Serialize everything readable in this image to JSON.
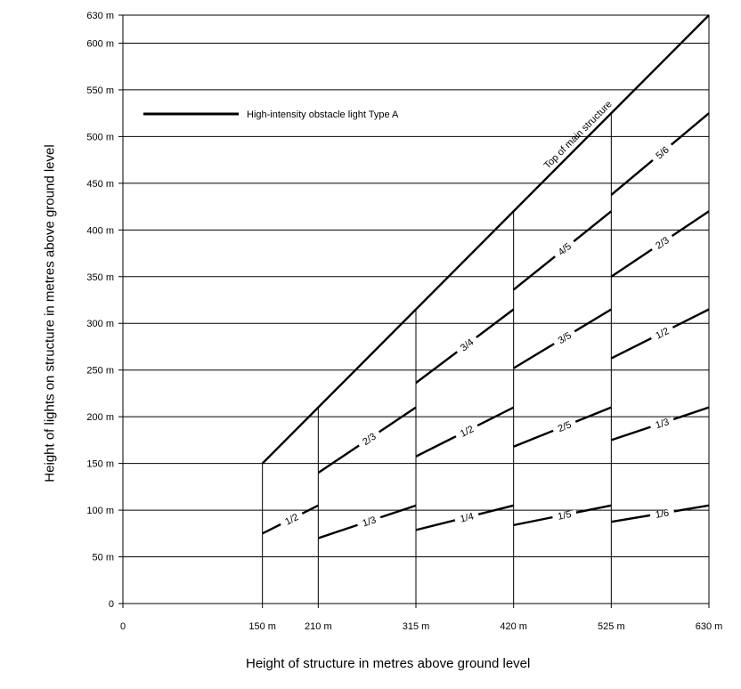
{
  "chart_data": {
    "type": "line",
    "xlabel": "Height of structure in metres above ground level",
    "ylabel": "Height of lights on structure in metres above ground level",
    "xlim": [
      0,
      630
    ],
    "ylim": [
      0,
      630
    ],
    "x_ticks": [
      {
        "value": 0,
        "label": "0"
      },
      {
        "value": 150,
        "label": "150 m"
      },
      {
        "value": 210,
        "label": "210 m"
      },
      {
        "value": 315,
        "label": "315 m"
      },
      {
        "value": 420,
        "label": "420 m"
      },
      {
        "value": 525,
        "label": "525 m"
      },
      {
        "value": 630,
        "label": "630 m"
      }
    ],
    "y_ticks": [
      {
        "value": 0,
        "label": "0"
      },
      {
        "value": 50,
        "label": "50 m"
      },
      {
        "value": 100,
        "label": "100 m"
      },
      {
        "value": 150,
        "label": "150 m"
      },
      {
        "value": 200,
        "label": "200 m"
      },
      {
        "value": 250,
        "label": "250 m"
      },
      {
        "value": 300,
        "label": "300 m"
      },
      {
        "value": 350,
        "label": "350 m"
      },
      {
        "value": 400,
        "label": "400 m"
      },
      {
        "value": 450,
        "label": "450 m"
      },
      {
        "value": 500,
        "label": "500 m"
      },
      {
        "value": 550,
        "label": "550 m"
      },
      {
        "value": 600,
        "label": "600 m"
      },
      {
        "value": 630,
        "label": "630 m"
      }
    ],
    "gridlines_y": [
      50,
      100,
      150,
      200,
      250,
      300,
      350,
      400,
      450,
      500,
      550,
      600
    ],
    "vertical_lines_x": [
      150,
      210,
      315,
      420,
      525
    ],
    "legend": {
      "label": "High-intensity obstacle light Type A",
      "placement": "top-left"
    },
    "series": [
      {
        "name": "Top of main structure",
        "x": [
          150,
          630
        ],
        "y": [
          150,
          630
        ]
      },
      {
        "name": "1/2",
        "x": [
          150,
          210
        ],
        "y": [
          75,
          105
        ]
      },
      {
        "name": "2/3",
        "x": [
          210,
          315
        ],
        "y": [
          140,
          210
        ]
      },
      {
        "name": "1/3",
        "x": [
          210,
          315
        ],
        "y": [
          70,
          105
        ]
      },
      {
        "name": "3/4",
        "x": [
          315,
          420
        ],
        "y": [
          236.25,
          315
        ]
      },
      {
        "name": "1/2",
        "x": [
          315,
          420
        ],
        "y": [
          157.5,
          210
        ]
      },
      {
        "name": "1/4",
        "x": [
          315,
          420
        ],
        "y": [
          78.75,
          105
        ]
      },
      {
        "name": "4/5",
        "x": [
          420,
          525
        ],
        "y": [
          336,
          420
        ]
      },
      {
        "name": "3/5",
        "x": [
          420,
          525
        ],
        "y": [
          252,
          315
        ]
      },
      {
        "name": "2/5",
        "x": [
          420,
          525
        ],
        "y": [
          168,
          210
        ]
      },
      {
        "name": "1/5",
        "x": [
          420,
          525
        ],
        "y": [
          84,
          105
        ]
      },
      {
        "name": "5/6",
        "x": [
          525,
          630
        ],
        "y": [
          437.5,
          525
        ]
      },
      {
        "name": "2/3",
        "x": [
          525,
          630
        ],
        "y": [
          350,
          420
        ]
      },
      {
        "name": "1/2",
        "x": [
          525,
          630
        ],
        "y": [
          262.5,
          315
        ]
      },
      {
        "name": "1/3",
        "x": [
          525,
          630
        ],
        "y": [
          175,
          210
        ]
      },
      {
        "name": "1/6",
        "x": [
          525,
          630
        ],
        "y": [
          87.5,
          105
        ]
      }
    ]
  }
}
